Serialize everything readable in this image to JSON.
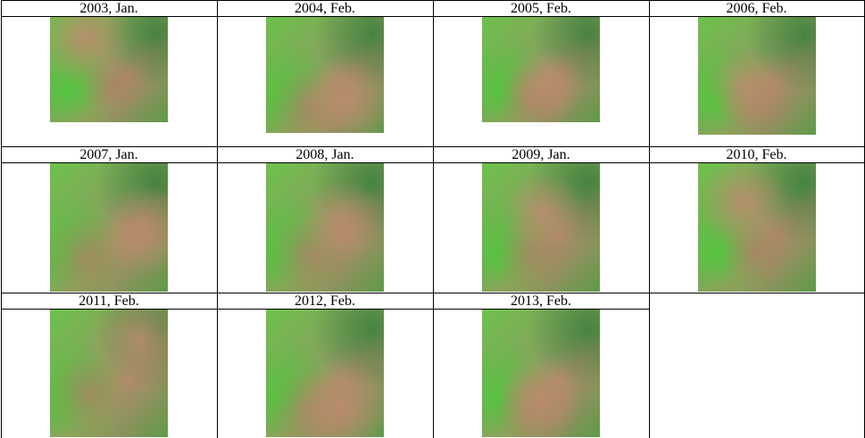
{
  "table": {
    "rows": [
      [
        "2003, Jan.",
        "2004, Feb.",
        "2005, Feb.",
        "2006, Feb."
      ],
      [
        "2007, Jan.",
        "2008, Jan.",
        "2009, Jan.",
        "2010, Feb."
      ],
      [
        "2011, Feb.",
        "2012, Feb.",
        "2013, Feb."
      ]
    ]
  }
}
